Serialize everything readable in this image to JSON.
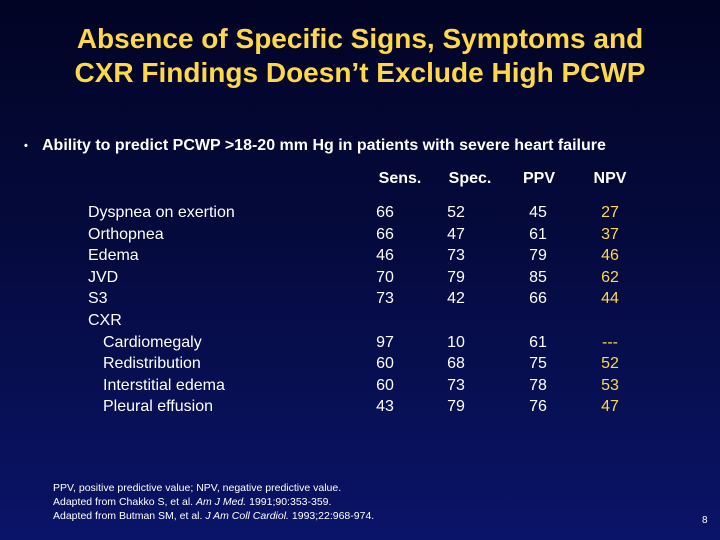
{
  "slide": {
    "title_line1": "Absence of Specific Signs, Symptoms and",
    "title_line2": "CXR Findings Doesn’t Exclude High PCWP",
    "bullet": "•",
    "subtitle": "Ability to predict PCWP >18-20 mm Hg in patients with severe heart failure",
    "page_number": "8"
  },
  "table": {
    "headers": [
      "Sens.",
      "Spec.",
      "PPV",
      "NPV"
    ],
    "rows": [
      {
        "label": "Dyspnea on exertion",
        "sens": "66",
        "spec": "52",
        "ppv": "45",
        "npv": "27"
      },
      {
        "label": "Orthopnea",
        "sens": "66",
        "spec": "47",
        "ppv": "61",
        "npv": "37"
      },
      {
        "label": "Edema",
        "sens": "46",
        "spec": "73",
        "ppv": "79",
        "npv": "46"
      },
      {
        "label": "JVD",
        "sens": "70",
        "spec": "79",
        "ppv": "85",
        "npv": "62"
      },
      {
        "label": "S3",
        "sens": "73",
        "spec": "42",
        "ppv": "66",
        "npv": "44"
      },
      {
        "label": "CXR",
        "sens": "",
        "spec": "",
        "ppv": "",
        "npv": ""
      },
      {
        "label": "Cardiomegaly",
        "sens": "97",
        "spec": "10",
        "ppv": "61",
        "npv": "---"
      },
      {
        "label": "Redistribution",
        "sens": "60",
        "spec": "68",
        "ppv": "75",
        "npv": "52"
      },
      {
        "label": "Interstitial edema",
        "sens": "60",
        "spec": "73",
        "ppv": "78",
        "npv": "53"
      },
      {
        "label": "Pleural effusion",
        "sens": "43",
        "spec": "79",
        "ppv": "76",
        "npv": "47"
      }
    ]
  },
  "footnote": {
    "line1": "PPV, positive predictive value; NPV, negative predictive value.",
    "line2_prefix": "Adapted from Chakko S, et al. ",
    "line2_journal": "Am J Med.",
    "line2_suffix": " 1991;90:353-359.",
    "line3_prefix": "Adapted from Butman SM, et al. ",
    "line3_journal": "J Am Coll Cardiol.",
    "line3_suffix": " 1993;22:968-974."
  }
}
